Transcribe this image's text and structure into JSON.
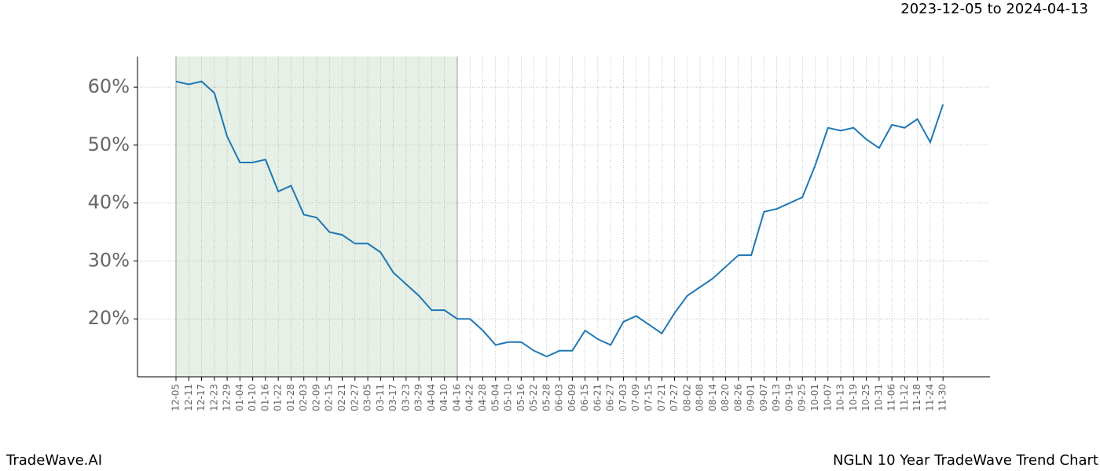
{
  "chart_data": {
    "type": "line",
    "title": "2023-12-05 to 2024-04-13",
    "categories": [
      "12-05",
      "12-11",
      "12-17",
      "12-23",
      "12-29",
      "01-04",
      "01-10",
      "01-16",
      "01-22",
      "01-28",
      "02-03",
      "02-09",
      "02-15",
      "02-21",
      "02-27",
      "03-05",
      "03-11",
      "03-17",
      "03-23",
      "03-29",
      "04-04",
      "04-10",
      "04-16",
      "04-22",
      "04-28",
      "05-04",
      "05-10",
      "05-16",
      "05-22",
      "05-28",
      "06-03",
      "06-09",
      "06-15",
      "06-21",
      "06-27",
      "07-03",
      "07-09",
      "07-15",
      "07-21",
      "07-27",
      "08-02",
      "08-08",
      "08-14",
      "08-20",
      "08-26",
      "09-01",
      "09-07",
      "09-13",
      "09-19",
      "09-25",
      "10-01",
      "10-07",
      "10-13",
      "10-19",
      "10-25",
      "10-31",
      "11-06",
      "11-12",
      "11-18",
      "11-24",
      "11-30"
    ],
    "values": [
      61,
      60.5,
      61,
      59,
      51.5,
      47,
      47,
      47.5,
      42,
      43,
      38,
      37.5,
      35,
      34.5,
      33,
      33,
      31.5,
      28,
      26,
      24,
      21.5,
      21.5,
      20,
      20,
      18,
      15.5,
      16,
      16,
      14.5,
      13.5,
      14.5,
      14.5,
      18,
      16.5,
      15.5,
      19.5,
      20.5,
      19,
      17.5,
      21,
      24,
      25.5,
      27,
      29,
      31,
      31,
      38.5,
      39,
      40,
      41,
      46.5,
      53,
      52.5,
      53,
      51,
      49.5,
      53.5,
      53,
      54.5,
      50.5,
      57
    ],
    "color": "#1f77b4",
    "highlight": {
      "from": "12-05",
      "to": "04-16",
      "color": "#e6f0e6"
    },
    "ylim": [
      10,
      65.3
    ],
    "yticks": [
      {
        "value": 20,
        "label": "20%"
      },
      {
        "value": 30,
        "label": "30%"
      },
      {
        "value": 40,
        "label": "40%"
      },
      {
        "value": 50,
        "label": "50%"
      },
      {
        "value": 60,
        "label": "60%"
      }
    ],
    "grid": true
  },
  "footer": {
    "left": "TradeWave.AI",
    "right": "NGLN 10 Year TradeWave Trend Chart"
  }
}
